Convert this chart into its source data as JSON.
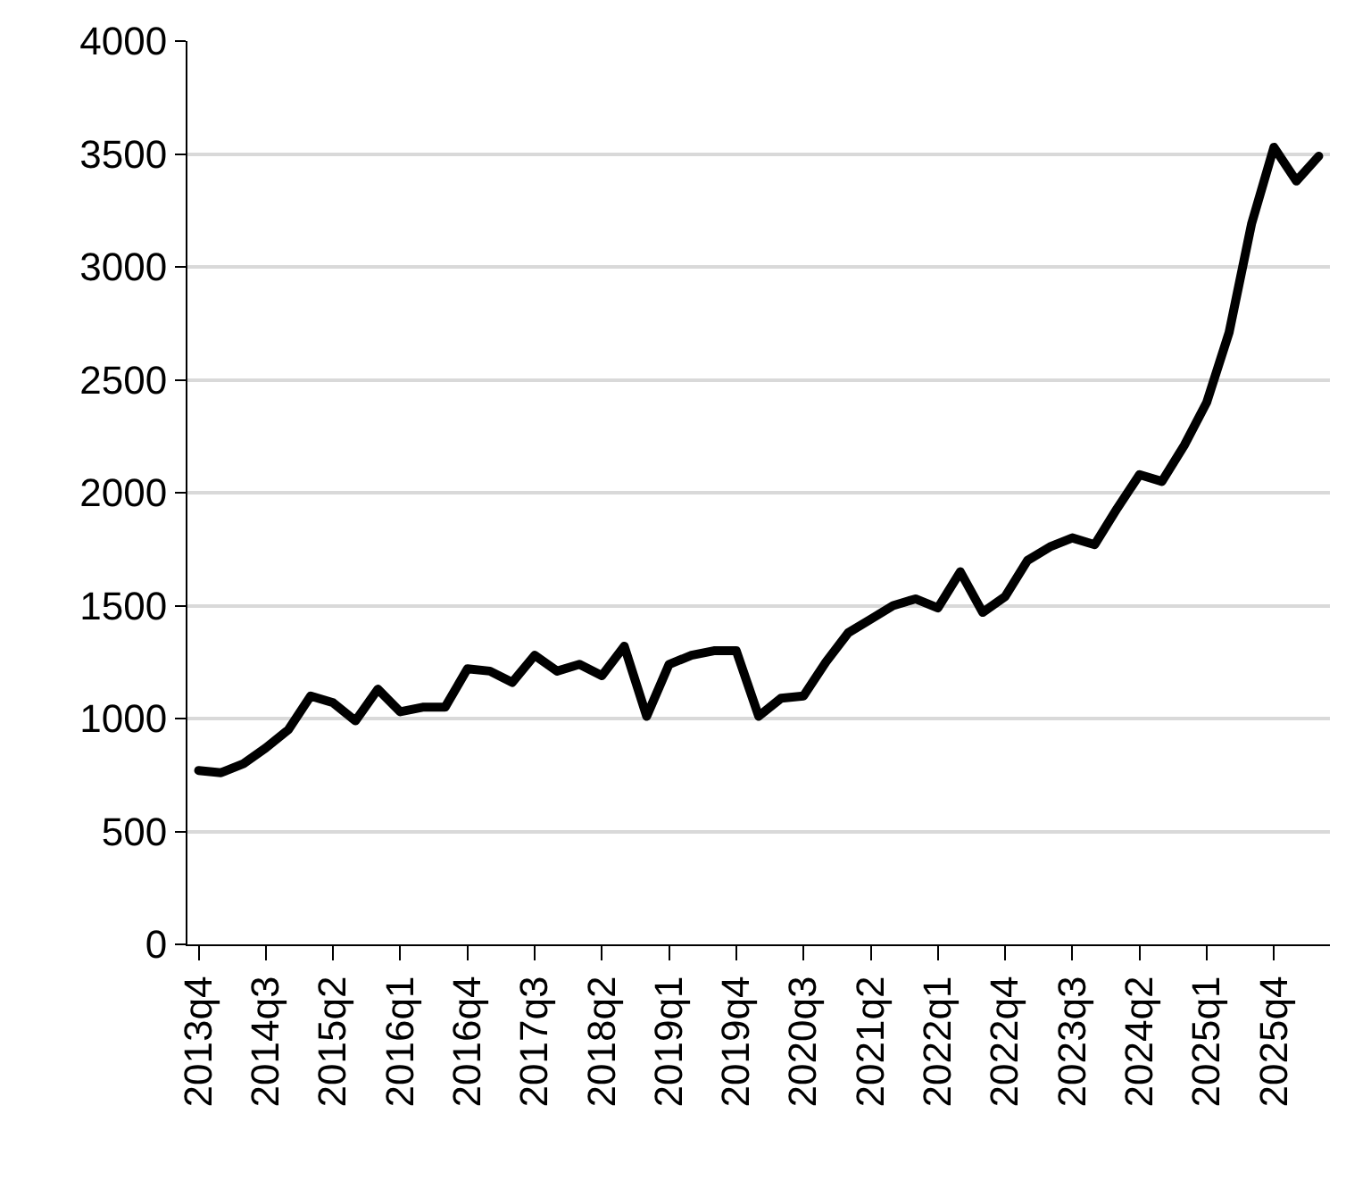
{
  "chart_data": {
    "type": "line",
    "categories": [
      "2013q4",
      null,
      null,
      "2014q3",
      null,
      null,
      "2015q2",
      null,
      null,
      "2016q1",
      null,
      null,
      "2016q4",
      null,
      null,
      "2017q3",
      null,
      null,
      "2018q2",
      null,
      null,
      "2019q1",
      null,
      null,
      "2019q4",
      null,
      null,
      "2020q3",
      null,
      null,
      "2021q2",
      null,
      null,
      "2022q1",
      null,
      null,
      "2022q4",
      null,
      null,
      "2023q3",
      null,
      null,
      "2024q2",
      null,
      null,
      "2025q1",
      null,
      null,
      "2025q4",
      null,
      null
    ],
    "series": [
      {
        "color": "#000000",
        "values": [
          770,
          760,
          800,
          870,
          950,
          1100,
          1070,
          990,
          1130,
          1030,
          1050,
          1050,
          1220,
          1210,
          1160,
          1280,
          1210,
          1240,
          1190,
          1320,
          1010,
          1240,
          1280,
          1300,
          1300,
          1010,
          1090,
          1100,
          1250,
          1380,
          1440,
          1500,
          1530,
          1490,
          1650,
          1470,
          1540,
          1700,
          1760,
          1800,
          1770,
          1930,
          2080,
          2050,
          2210,
          2400,
          2710,
          3190,
          3530,
          3380,
          3490
        ]
      }
    ],
    "ylim": [
      0,
      4000
    ],
    "yticks": [
      0,
      500,
      1000,
      1500,
      2000,
      2500,
      3000,
      3500,
      4000
    ],
    "grid": "y",
    "marker": "none",
    "line_style": "solid"
  }
}
